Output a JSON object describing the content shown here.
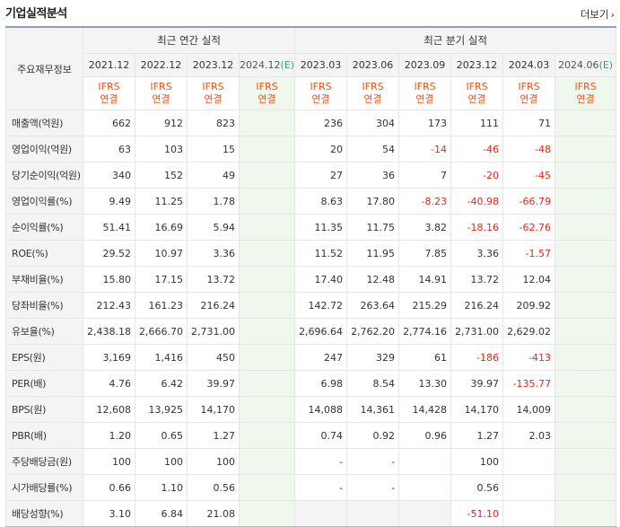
{
  "header": {
    "title": "기업실적분석",
    "more_label": "더보기"
  },
  "table": {
    "row_header_label": "주요재무정보",
    "annual_group_label": "최근 연간 실적",
    "quarter_group_label": "최근 분기 실적",
    "periods": [
      "2021.12",
      "2022.12",
      "2023.12",
      "2024.12",
      "2023.03",
      "2023.06",
      "2023.09",
      "2023.12",
      "2024.03",
      "2024.06"
    ],
    "estimate_marker": "(E)",
    "ifrs_line1": "IFRS",
    "ifrs_line2": "연결",
    "rows": [
      {
        "label": "매출액(억원)",
        "values": [
          "662",
          "912",
          "823",
          "",
          "236",
          "304",
          "173",
          "111",
          "71",
          ""
        ]
      },
      {
        "label": "영업이익(억원)",
        "values": [
          "63",
          "103",
          "15",
          "",
          "20",
          "54",
          "-14",
          "-46",
          "-48",
          ""
        ]
      },
      {
        "label": "당기순이익(억원)",
        "values": [
          "340",
          "152",
          "49",
          "",
          "27",
          "36",
          "7",
          "-20",
          "-45",
          ""
        ]
      },
      {
        "label": "영업이익률(%)",
        "values": [
          "9.49",
          "11.25",
          "1.78",
          "",
          "8.63",
          "17.80",
          "-8.23",
          "-40.98",
          "-66.79",
          ""
        ]
      },
      {
        "label": "순이익률(%)",
        "values": [
          "51.41",
          "16.69",
          "5.94",
          "",
          "11.35",
          "11.75",
          "3.82",
          "-18.16",
          "-62.76",
          ""
        ]
      },
      {
        "label": "ROE(%)",
        "values": [
          "29.52",
          "10.97",
          "3.36",
          "",
          "11.52",
          "11.95",
          "7.85",
          "3.36",
          "-1.57",
          ""
        ]
      },
      {
        "label": "부채비율(%)",
        "values": [
          "15.80",
          "17.15",
          "13.72",
          "",
          "17.40",
          "12.48",
          "14.91",
          "13.72",
          "12.04",
          ""
        ]
      },
      {
        "label": "당좌비율(%)",
        "values": [
          "212.43",
          "161.23",
          "216.24",
          "",
          "142.72",
          "263.64",
          "215.29",
          "216.24",
          "209.92",
          ""
        ]
      },
      {
        "label": "유보율(%)",
        "values": [
          "2,438.18",
          "2,666.70",
          "2,731.00",
          "",
          "2,696.64",
          "2,762.20",
          "2,774.16",
          "2,731.00",
          "2,629.02",
          ""
        ]
      },
      {
        "label": "EPS(원)",
        "values": [
          "3,169",
          "1,416",
          "450",
          "",
          "247",
          "329",
          "61",
          "-186",
          "-413",
          ""
        ]
      },
      {
        "label": "PER(배)",
        "values": [
          "4.76",
          "6.42",
          "39.97",
          "",
          "6.98",
          "8.54",
          "13.30",
          "39.97",
          "-135.77",
          ""
        ]
      },
      {
        "label": "BPS(원)",
        "values": [
          "12,608",
          "13,925",
          "14,170",
          "",
          "14,088",
          "14,361",
          "14,428",
          "14,170",
          "14,009",
          ""
        ]
      },
      {
        "label": "PBR(배)",
        "values": [
          "1.20",
          "0.65",
          "1.27",
          "",
          "0.74",
          "0.92",
          "0.96",
          "1.27",
          "2.03",
          ""
        ]
      },
      {
        "label": "주당배당금(원)",
        "values": [
          "100",
          "100",
          "100",
          "",
          "-",
          "-",
          "",
          "100",
          "",
          ""
        ]
      },
      {
        "label": "시가배당률(%)",
        "values": [
          "0.66",
          "1.10",
          "0.56",
          "",
          "-",
          "-",
          "",
          "0.56",
          "",
          ""
        ]
      },
      {
        "label": "배당성향(%)",
        "values": [
          "3.10",
          "6.84",
          "21.08",
          "",
          "",
          "",
          "",
          "-51.10",
          "",
          ""
        ]
      }
    ]
  },
  "colors": {
    "negative": "#e8261a",
    "ifrs": "#e8541a",
    "estimate_bg": "#f0f8ee",
    "estimate_marker": "#2fa86b",
    "header_bg": "#f4f4f4"
  }
}
